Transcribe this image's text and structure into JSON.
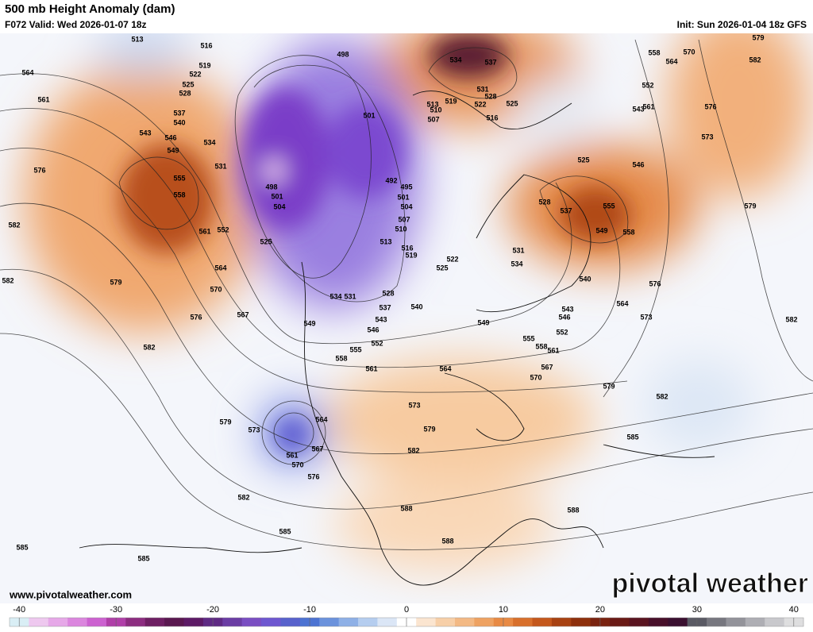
{
  "header": {
    "title": "500 mb Height Anomaly (dam)",
    "valid": "F072 Valid: Wed 2026-01-07 18z",
    "init": "Init: Sun 2026-01-04 18z GFS"
  },
  "footer": {
    "website": "www.pivotalweather.com",
    "logo": "pivotal weather"
  },
  "contour_labels": [
    513,
    516,
    519,
    522,
    525,
    528,
    537,
    540,
    543,
    546,
    549,
    534,
    531,
    555,
    558,
    561,
    552,
    564,
    570,
    576,
    567,
    579,
    582,
    582,
    582,
    564,
    561,
    576,
    498,
    498,
    501,
    504,
    525,
    501,
    492,
    495,
    501,
    504,
    507,
    510,
    513,
    516,
    519,
    522,
    525,
    528,
    534,
    531,
    537,
    540,
    543,
    546,
    549,
    552,
    555,
    558,
    561,
    564,
    573,
    579,
    582,
    564,
    567,
    561,
    570,
    573,
    579,
    576,
    582,
    585,
    585,
    585,
    588,
    588,
    588,
    585,
    582,
    579,
    570,
    567,
    561,
    558,
    555,
    549,
    552,
    546,
    543,
    540,
    534,
    531,
    528,
    537,
    549,
    558,
    555,
    546,
    525,
    543,
    561,
    552,
    558,
    564,
    570,
    576,
    573,
    579,
    582,
    579,
    576,
    573,
    564,
    582,
    534,
    537,
    531,
    528,
    525,
    522,
    519,
    513,
    510,
    516,
    507
  ],
  "colorbar": {
    "lim": [
      -41,
      41
    ],
    "ticks": [
      -40,
      -30,
      -20,
      -10,
      0,
      10,
      20,
      30,
      40
    ],
    "colors": [
      "#d9eef5",
      "#eec8ef",
      "#e6a8e8",
      "#db86de",
      "#cc62d0",
      "#b03fa8",
      "#8c2d80",
      "#6e1f63",
      "#5a1850",
      "#5d1a66",
      "#5f2a84",
      "#6b3da4",
      "#7a4ec2",
      "#6e57d0",
      "#5862cc",
      "#4c73d2",
      "#6b92dc",
      "#8eb0e6",
      "#b5cdef",
      "#dbe6f6",
      "#ffffff",
      "#fbe5d0",
      "#f7cfa8",
      "#f3b984",
      "#eea262",
      "#e88a44",
      "#d8702c",
      "#c4581c",
      "#a84212",
      "#8e300c",
      "#7a2310",
      "#6a1a16",
      "#5a1420",
      "#48102a",
      "#3a1030",
      "#5a5a64",
      "#77777f",
      "#93939a",
      "#aeaeb4",
      "#c8c8cc",
      "#dededf"
    ]
  }
}
